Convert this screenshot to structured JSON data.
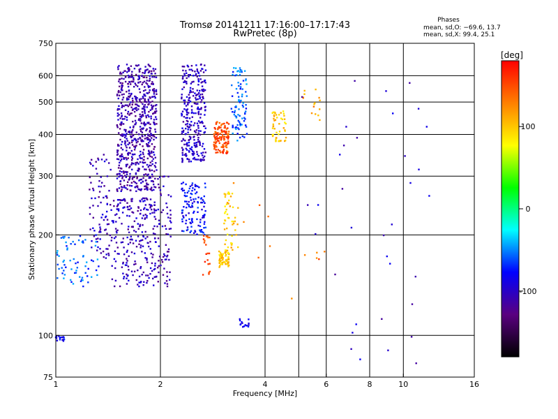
{
  "chart_data": {
    "type": "scatter",
    "title": "Tromsø 20141211 17:16:00–17:17:43",
    "subtitle": "RwPretec (8p)",
    "xlabel": "Frequency [MHz]",
    "ylabel": "Stationary phase Virtual Height [km]",
    "x_scale": "log",
    "y_scale": "log",
    "xlim": [
      1,
      16
    ],
    "ylim": [
      75,
      750
    ],
    "x_ticks": [
      1,
      2,
      4,
      6,
      8,
      10,
      16
    ],
    "y_ticks": [
      75,
      100,
      200,
      300,
      400,
      500,
      600,
      750
    ],
    "x_gridlines": [
      2,
      4,
      5,
      6,
      8,
      10
    ],
    "y_gridlines": [
      100,
      200,
      300,
      400,
      500,
      600
    ],
    "grid": true,
    "stats": {
      "header": "Phases",
      "line_o": "mean, sd,O: −69.6, 13.7",
      "line_x": "mean, sd,X:  99.4, 25.1"
    },
    "colorbar": {
      "label": "[deg]",
      "ticks": [
        100,
        0,
        -100
      ],
      "range": [
        -180,
        180
      ],
      "colors": [
        "#000000",
        "#5a0080",
        "#0000ff",
        "#00ffff",
        "#00ff00",
        "#ffff00",
        "#ff8000",
        "#ff0000"
      ]
    },
    "clusters": [
      {
        "x": [
          1.5,
          1.95
        ],
        "y": [
          270,
          650
        ],
        "phase": -110,
        "n": 700
      },
      {
        "x": [
          1.45,
          1.95
        ],
        "y": [
          140,
          260
        ],
        "phase": -105,
        "n": 240
      },
      {
        "x": [
          1.25,
          1.45
        ],
        "y": [
          170,
          350
        ],
        "phase": -105,
        "n": 90
      },
      {
        "x": [
          1.0,
          1.35
        ],
        "y": [
          140,
          200
        ],
        "phase": -60,
        "n": 70
      },
      {
        "x": [
          1.0,
          1.06
        ],
        "y": [
          96,
          100
        ],
        "phase": -80,
        "n": 15
      },
      {
        "x": [
          1.95,
          2.15
        ],
        "y": [
          140,
          300
        ],
        "phase": -110,
        "n": 70
      },
      {
        "x": [
          2.3,
          2.7
        ],
        "y": [
          330,
          650
        ],
        "phase": -100,
        "n": 300
      },
      {
        "x": [
          2.3,
          2.7
        ],
        "y": [
          200,
          290
        ],
        "phase": -80,
        "n": 120
      },
      {
        "x": [
          2.65,
          2.8
        ],
        "y": [
          150,
          200
        ],
        "phase": 150,
        "n": 20
      },
      {
        "x": [
          2.85,
          3.15
        ],
        "y": [
          350,
          440
        ],
        "phase": 150,
        "n": 130
      },
      {
        "x": [
          2.95,
          3.15
        ],
        "y": [
          160,
          180
        ],
        "phase": 100,
        "n": 60
      },
      {
        "x": [
          3.05,
          3.35
        ],
        "y": [
          180,
          270
        ],
        "phase": 100,
        "n": 50
      },
      {
        "x": [
          3.2,
          3.55
        ],
        "y": [
          380,
          640
        ],
        "phase": -60,
        "n": 90
      },
      {
        "x": [
          4.2,
          4.6
        ],
        "y": [
          380,
          470
        ],
        "phase": 100,
        "n": 50
      },
      {
        "x": [
          3.35,
          3.6
        ],
        "y": [
          106,
          112
        ],
        "phase": -90,
        "n": 15
      },
      {
        "x": [
          5.0,
          5.8
        ],
        "y": [
          440,
          600
        ],
        "phase": 120,
        "n": 15
      },
      {
        "x": [
          5.0,
          12.0
        ],
        "y": [
          80,
          620
        ],
        "phase": -100,
        "n": 35
      },
      {
        "x": [
          3.0,
          6.0
        ],
        "y": [
          100,
          300
        ],
        "phase": 140,
        "n": 12
      }
    ]
  }
}
